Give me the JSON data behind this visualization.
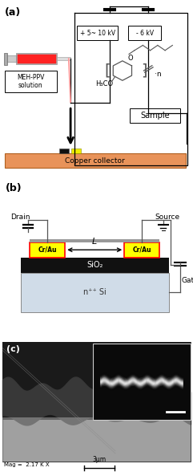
{
  "fig_width": 2.41,
  "fig_height": 5.93,
  "bg_color": "#ffffff",
  "panel_a": {
    "label": "(a)",
    "voltage_left": "+ 5~ 10 kV",
    "voltage_right": "- 6 kV",
    "collector_label": "Copper collector",
    "collector_color": "#E8935A",
    "sample_label": "Sample",
    "meh_label": "MEH-PPV\nsolution",
    "jet_color": "#FF9999"
  },
  "panel_b": {
    "label": "(b)",
    "drain_label": "Drain",
    "source_label": "Source",
    "gate_label": "Gate",
    "crau_label": "Cr/Au",
    "sio2_label": "SiO₂",
    "si_label": "n⁺⁺ Si",
    "L_label": "L",
    "sio2_color": "#111111",
    "si_color": "#D0DCE8",
    "crau_color": "#FFFF00",
    "crau_border": "#FF0000"
  },
  "panel_c": {
    "label": "(c)",
    "mag_label": "Mag =  2.17 K X",
    "scale_label": "3μm"
  }
}
